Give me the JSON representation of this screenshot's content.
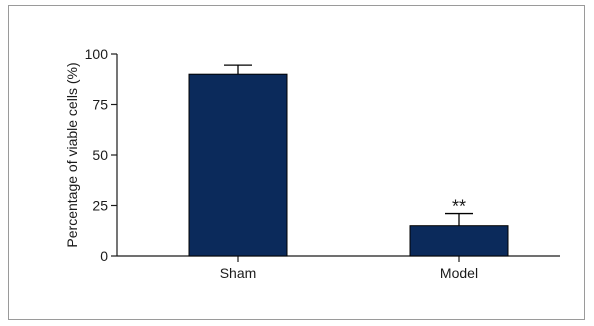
{
  "chart_data": {
    "type": "bar",
    "categories": [
      "Sham",
      "Model"
    ],
    "values": [
      90,
      15
    ],
    "errors": [
      4.5,
      6
    ],
    "annotations": [
      "",
      "**"
    ],
    "ylabel": "Percentage of viable cells (%)",
    "xlabel": "",
    "ylim": [
      0,
      100
    ],
    "yticks": [
      0,
      25,
      50,
      75,
      100
    ],
    "grid": false,
    "bar_color": "#0b2a5b",
    "axis_color": "#1a1a1a"
  }
}
